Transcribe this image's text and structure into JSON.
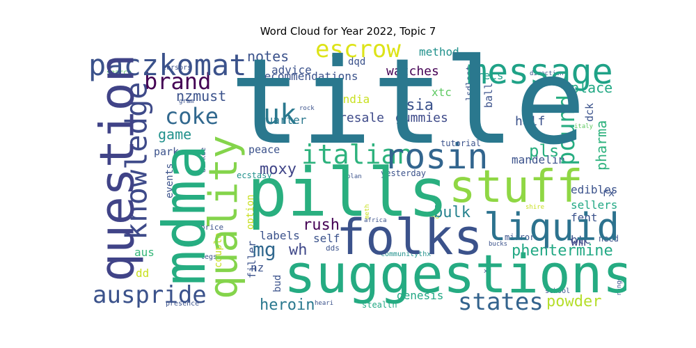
{
  "chart_data": {
    "type": "wordcloud",
    "title": "Word Cloud for Year 2022, Topic 7",
    "words": [
      {
        "text": "title",
        "size": 10,
        "color": "#2a788e"
      },
      {
        "text": "pills",
        "size": 5.2,
        "color": "#29af7f"
      },
      {
        "text": "suggestions",
        "size": 4.8,
        "color": "#25ab82"
      },
      {
        "text": "folks",
        "size": 4.2,
        "color": "#3b528b"
      },
      {
        "text": "question",
        "size": 4.3,
        "color": "#404387"
      },
      {
        "text": "mdma",
        "size": 4.6,
        "color": "#26ad81"
      },
      {
        "text": "stuff",
        "size": 4.0,
        "color": "#8fd744"
      },
      {
        "text": "quality",
        "size": 3.8,
        "color": "#84d44b"
      },
      {
        "text": "liquid",
        "size": 3.4,
        "color": "#2c728e"
      },
      {
        "text": "message",
        "size": 3.1,
        "color": "#1fa287"
      },
      {
        "text": "rosin",
        "size": 3.1,
        "color": "#32658e"
      },
      {
        "text": "knowledge",
        "size": 2.6,
        "color": "#3e4a89"
      },
      {
        "text": "paczkomat",
        "size": 2.6,
        "color": "#3b528b"
      },
      {
        "text": "italian",
        "size": 2.4,
        "color": "#2db27d"
      },
      {
        "text": "uk",
        "size": 2.5,
        "color": "#2a788e"
      },
      {
        "text": "pound",
        "size": 2.1,
        "color": "#27ad81"
      },
      {
        "text": "auspride",
        "size": 2.1,
        "color": "#3b528b"
      },
      {
        "text": "states",
        "size": 2.0,
        "color": "#33638d"
      },
      {
        "text": "escrow",
        "size": 2.0,
        "color": "#dde318"
      },
      {
        "text": "brand",
        "size": 2.0,
        "color": "#440154"
      },
      {
        "text": "coke",
        "size": 2.0,
        "color": "#31688e"
      },
      {
        "text": "mg",
        "size": 1.7,
        "color": "#31688e"
      },
      {
        "text": "pls",
        "size": 1.5,
        "color": "#29af7f"
      },
      {
        "text": "rush",
        "size": 1.4,
        "color": "#440154"
      },
      {
        "text": "wh",
        "size": 1.4,
        "color": "#3f4889"
      },
      {
        "text": "moxy",
        "size": 1.4,
        "color": "#404588"
      },
      {
        "text": "heroin",
        "size": 1.4,
        "color": "#2a788e"
      },
      {
        "text": "phentermine",
        "size": 1.4,
        "color": "#22a884"
      },
      {
        "text": "powder",
        "size": 1.4,
        "color": "#b5de2b"
      },
      {
        "text": "bulk",
        "size": 1.3,
        "color": "#26828e"
      },
      {
        "text": "asia",
        "size": 1.3,
        "color": "#3b528b"
      },
      {
        "text": "nzmust",
        "size": 1.3,
        "color": "#3b528b"
      },
      {
        "text": "game",
        "size": 1.2,
        "color": "#21918c"
      },
      {
        "text": "notes",
        "size": 1.2,
        "color": "#3b528b"
      },
      {
        "text": "place",
        "size": 1.2,
        "color": "#22a884"
      },
      {
        "text": "pharma",
        "size": 1.2,
        "color": "#2db27d"
      },
      {
        "text": "wm",
        "size": 1.2,
        "color": "#404387"
      },
      {
        "text": "watches",
        "size": 1.1,
        "color": "#440154"
      },
      {
        "text": "half",
        "size": 1.1,
        "color": "#3b528b"
      },
      {
        "text": "gummies",
        "size": 1.1,
        "color": "#3e4a89"
      },
      {
        "text": "resale",
        "size": 1.1,
        "color": "#3e4a89"
      },
      {
        "text": "advice",
        "size": 1.0,
        "color": "#3b528b"
      },
      {
        "text": "recommendations",
        "size": 1.0,
        "color": "#3b528b"
      },
      {
        "text": "method",
        "size": 1.0,
        "color": "#21918c"
      },
      {
        "text": "recs",
        "size": 1.0,
        "color": "#1f9e89"
      },
      {
        "text": "quarter",
        "size": 1.0,
        "color": "#2a788e"
      },
      {
        "text": "xtc",
        "size": 1.0,
        "color": "#5ec962"
      },
      {
        "text": "india",
        "size": 1.0,
        "color": "#c8e020"
      },
      {
        "text": "dd",
        "size": 1.0,
        "color": "#c8e020"
      },
      {
        "text": "aus",
        "size": 1.0,
        "color": "#35b779"
      },
      {
        "text": "genesis",
        "size": 1.0,
        "color": "#22a884"
      },
      {
        "text": "self",
        "size": 1.0,
        "color": "#3b528b"
      },
      {
        "text": "labels",
        "size": 1.0,
        "color": "#3b528b"
      },
      {
        "text": "nz",
        "size": 1.0,
        "color": "#3b528b"
      },
      {
        "text": "btc",
        "size": 1.0,
        "color": "#3b528b"
      },
      {
        "text": "fent",
        "size": 1.0,
        "color": "#3b528b"
      },
      {
        "text": "edibles",
        "size": 1.0,
        "color": "#3b528b"
      },
      {
        "text": "sellers",
        "size": 1.0,
        "color": "#22a884"
      },
      {
        "text": "mandelin",
        "size": 1.0,
        "color": "#3b528b"
      },
      {
        "text": "peace",
        "size": 0.9,
        "color": "#3b528b"
      },
      {
        "text": "park",
        "size": 0.9,
        "color": "#3b528b"
      },
      {
        "text": "dck",
        "size": 0.9,
        "color": "#3b528b"
      },
      {
        "text": "ball",
        "size": 0.9,
        "color": "#3b528b"
      },
      {
        "text": "rx",
        "size": 0.9,
        "color": "#3b528b"
      },
      {
        "text": "sidenote",
        "size": 0.9,
        "color": "#3b528b"
      },
      {
        "text": "filler",
        "size": 0.9,
        "color": "#3b528b"
      },
      {
        "text": "option",
        "size": 0.8,
        "color": "#c8e020"
      },
      {
        "text": "couple",
        "size": 0.8,
        "color": "#c8e020"
      },
      {
        "text": "events",
        "size": 0.8,
        "color": "#3b528b"
      },
      {
        "text": "bud",
        "size": 0.8,
        "color": "#3b528b"
      },
      {
        "text": "dqd",
        "size": 0.8,
        "color": "#3b528b"
      },
      {
        "text": "yesterday",
        "size": 0.7,
        "color": "#3b528b"
      },
      {
        "text": "tutorial",
        "size": 0.7,
        "color": "#3b528b"
      },
      {
        "text": "mirror",
        "size": 0.7,
        "color": "#3b528b"
      },
      {
        "text": "need",
        "size": 0.7,
        "color": "#3b528b"
      },
      {
        "text": "lsdlost",
        "size": 0.7,
        "color": "#3b528b"
      },
      {
        "text": "ecstasy",
        "size": 0.7,
        "color": "#21918c"
      },
      {
        "text": "stealth",
        "size": 0.7,
        "color": "#22a884"
      },
      {
        "text": "dds",
        "size": 0.7,
        "color": "#3b528b"
      },
      {
        "text": "price",
        "size": 0.7,
        "color": "#3b528b"
      },
      {
        "text": "legs",
        "size": 0.6,
        "color": "#3b528b"
      },
      {
        "text": "communitythx",
        "size": 0.6,
        "color": "#21918c"
      },
      {
        "text": "school",
        "size": 0.6,
        "color": "#3b528b"
      },
      {
        "text": "presence",
        "size": 0.6,
        "color": "#3b528b"
      },
      {
        "text": "darkde",
        "size": 0.6,
        "color": "#3b528b"
      },
      {
        "text": "search",
        "size": 0.6,
        "color": "#5ec962"
      },
      {
        "text": "cursors",
        "size": 0.5,
        "color": "#3b528b"
      },
      {
        "text": "gram",
        "size": 0.5,
        "color": "#3b528b"
      },
      {
        "text": "rock",
        "size": 0.5,
        "color": "#3b528b"
      },
      {
        "text": "italy",
        "size": 0.5,
        "color": "#5ec962"
      },
      {
        "text": "plan",
        "size": 0.5,
        "color": "#3b528b"
      },
      {
        "text": "meth",
        "size": 0.5,
        "color": "#c8e020"
      },
      {
        "text": "africa",
        "size": 0.5,
        "color": "#3b528b"
      },
      {
        "text": "eu",
        "size": 0.5,
        "color": "#c8e020"
      },
      {
        "text": "shire",
        "size": 0.5,
        "color": "#c8e020"
      },
      {
        "text": "bucks",
        "size": 0.5,
        "color": "#3b528b"
      },
      {
        "text": "xr",
        "size": 0.5,
        "color": "#3b528b"
      },
      {
        "text": "heari",
        "size": 0.5,
        "color": "#3b528b"
      },
      {
        "text": "direction",
        "size": 0.5,
        "color": "#3b528b"
      },
      {
        "text": "range",
        "size": 0.5,
        "color": "#3b528b"
      }
    ]
  }
}
